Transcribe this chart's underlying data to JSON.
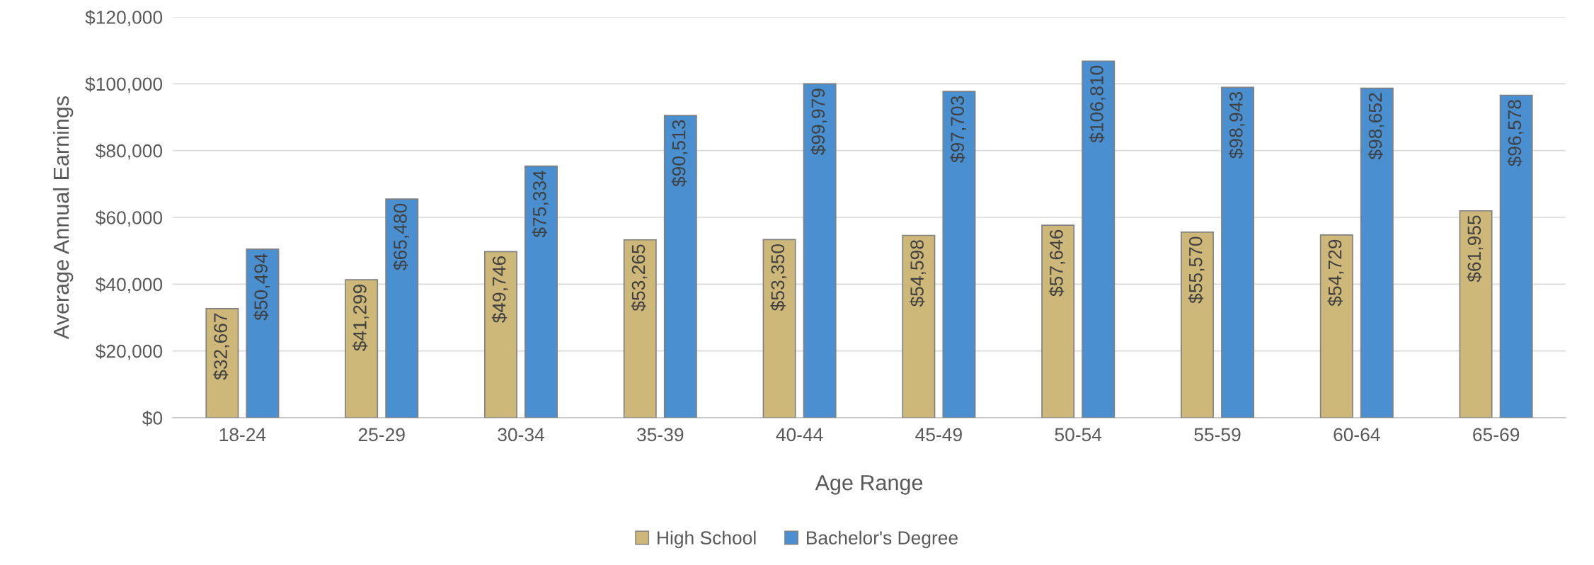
{
  "chart_data": {
    "type": "bar",
    "xlabel": "Age Range",
    "ylabel": "Average Annual Earnings",
    "categories": [
      "18-24",
      "25-29",
      "30-34",
      "35-39",
      "40-44",
      "45-49",
      "50-54",
      "55-59",
      "60-64",
      "65-69"
    ],
    "series": [
      {
        "name": "High School",
        "color": "#cdb87a",
        "values": [
          32667,
          41299,
          49746,
          53265,
          53350,
          54598,
          57646,
          55570,
          54729,
          61955
        ],
        "value_labels": [
          "$32,667",
          "$41,299",
          "$49,746",
          "$53,265",
          "$53,350",
          "$54,598",
          "$57,646",
          "$55,570",
          "$54,729",
          "$61,955"
        ]
      },
      {
        "name": "Bachelor's Degree",
        "color": "#4a8fcf",
        "values": [
          50494,
          65480,
          75334,
          90513,
          99979,
          97703,
          106810,
          98943,
          98652,
          96578
        ],
        "value_labels": [
          "$50,494",
          "$65,480",
          "$75,334",
          "$90,513",
          "$99,979",
          "$97,703",
          "$106,810",
          "$98,943",
          "$98,652",
          "$96,578"
        ]
      }
    ],
    "ylim": [
      0,
      120000
    ],
    "yticks": [
      {
        "value": 0,
        "label": "$0"
      },
      {
        "value": 20000,
        "label": "$20,000"
      },
      {
        "value": 40000,
        "label": "$40,000"
      },
      {
        "value": 60000,
        "label": "$60,000"
      },
      {
        "value": 80000,
        "label": "$80,000"
      },
      {
        "value": 100000,
        "label": "$100,000"
      },
      {
        "value": 120000,
        "label": "$120,000"
      }
    ],
    "grid": "y",
    "legend": "bottom"
  }
}
